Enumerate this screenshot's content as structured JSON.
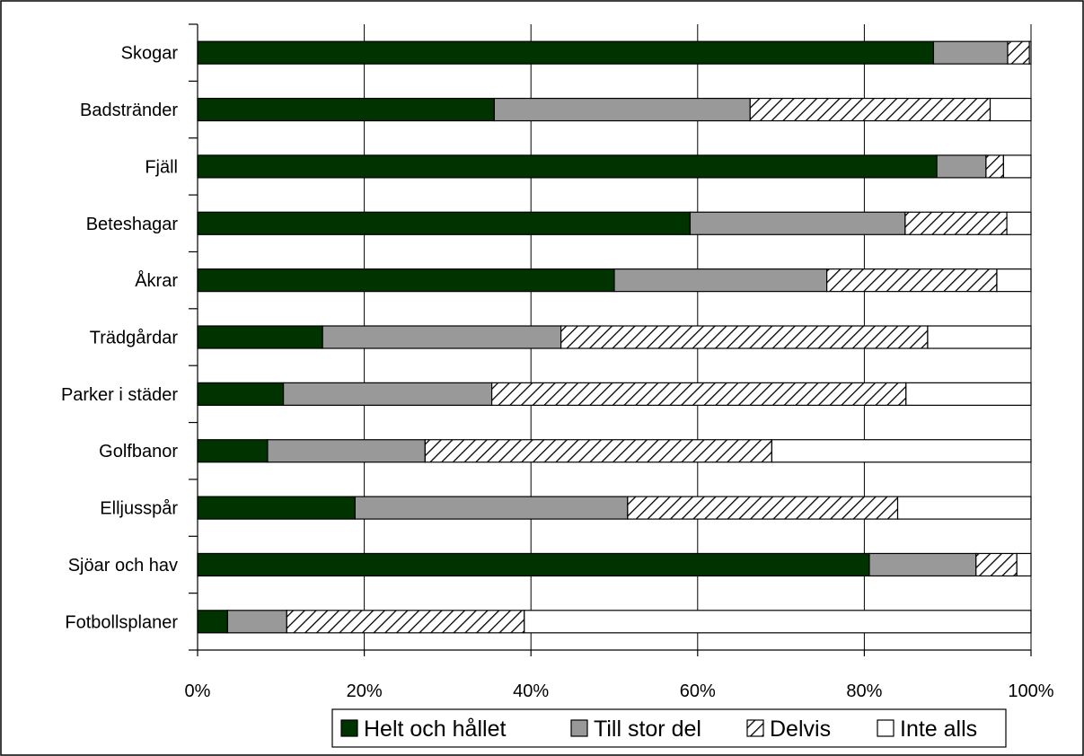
{
  "chart_data": {
    "type": "bar",
    "orientation": "horizontal",
    "stacked": "percent",
    "categories": [
      "Skogar",
      "Badstränder",
      "Fjäll",
      "Beteshagar",
      "Åkrar",
      "Trädgårdar",
      "Parker i städer",
      "Golfbanor",
      "Elljusspår",
      "Sjöar och hav",
      "Fotbollsplaner"
    ],
    "series": [
      {
        "name": "Helt och hållet",
        "color": "#003300",
        "pattern": "solid",
        "values": [
          88.3,
          35.6,
          88.7,
          59.1,
          50.0,
          15.0,
          10.3,
          8.4,
          18.9,
          80.6,
          3.6
        ]
      },
      {
        "name": "Till stor del",
        "color": "#999999",
        "pattern": "solid",
        "values": [
          8.9,
          30.7,
          5.9,
          25.8,
          25.5,
          28.6,
          25.0,
          18.9,
          32.7,
          12.8,
          7.1
        ]
      },
      {
        "name": "Delvis",
        "color": "#ffffff",
        "pattern": "diagonal-hatch",
        "values": [
          2.6,
          28.8,
          2.1,
          12.2,
          20.4,
          44.0,
          49.7,
          41.6,
          32.4,
          4.9,
          28.5
        ]
      },
      {
        "name": "Inte alls",
        "color": "#ffffff",
        "pattern": "solid",
        "values": [
          0.2,
          4.9,
          3.3,
          2.9,
          4.1,
          12.4,
          15.0,
          31.1,
          16.0,
          1.7,
          60.8
        ]
      }
    ],
    "xaxis": {
      "ticks": [
        "0%",
        "20%",
        "40%",
        "60%",
        "80%",
        "100%"
      ],
      "xlim": [
        0,
        100
      ]
    },
    "grid": true,
    "legend": "bottom-right"
  }
}
